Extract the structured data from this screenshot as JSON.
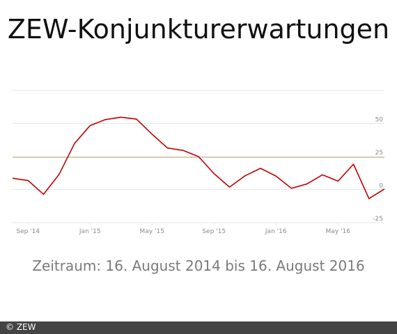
{
  "title": "ZEW-Konjunkturerwartungen",
  "subtitle": "Zeitraum: 16. August 2014 bis 16. August 2016",
  "copyright": "© ZEW",
  "colors": {
    "line": "#c00000",
    "reference": "#d8c3a0",
    "grid": "#e6e6e6",
    "footer": "#444444"
  },
  "chart_data": {
    "type": "line",
    "title": "",
    "xlabel": "",
    "ylabel": "",
    "x_tick_labels": [
      "Sep '14",
      "Jan '15",
      "May '15",
      "Sep '15",
      "Jan '16",
      "May '16"
    ],
    "y_tick_labels": [
      "50",
      "25",
      "0",
      "-25"
    ],
    "ylim": [
      -25,
      75
    ],
    "grid": true,
    "reference_line": 24.4,
    "series": [
      {
        "values": [
          {
            "x": "2014-08",
            "y": 8.6
          },
          {
            "x": "2014-09",
            "y": 6.9
          },
          {
            "x": "2014-10",
            "y": -3.6
          },
          {
            "x": "2014-11",
            "y": 11.5
          },
          {
            "x": "2014-12",
            "y": 34.9
          },
          {
            "x": "2015-01",
            "y": 48.4
          },
          {
            "x": "2015-02",
            "y": 53.0
          },
          {
            "x": "2015-03",
            "y": 54.8
          },
          {
            "x": "2015-04",
            "y": 53.3
          },
          {
            "x": "2015-05",
            "y": 41.9
          },
          {
            "x": "2015-06",
            "y": 31.5
          },
          {
            "x": "2015-07",
            "y": 29.7
          },
          {
            "x": "2015-08",
            "y": 25.0
          },
          {
            "x": "2015-09",
            "y": 12.1
          },
          {
            "x": "2015-10",
            "y": 1.9
          },
          {
            "x": "2015-11",
            "y": 10.4
          },
          {
            "x": "2015-12",
            "y": 16.1
          },
          {
            "x": "2016-01",
            "y": 10.2
          },
          {
            "x": "2016-02",
            "y": 1.0
          },
          {
            "x": "2016-03",
            "y": 4.3
          },
          {
            "x": "2016-04",
            "y": 11.2
          },
          {
            "x": "2016-05",
            "y": 6.4
          },
          {
            "x": "2016-06",
            "y": 19.2
          },
          {
            "x": "2016-07",
            "y": -6.8
          },
          {
            "x": "2016-08",
            "y": 0.5
          }
        ]
      }
    ]
  }
}
